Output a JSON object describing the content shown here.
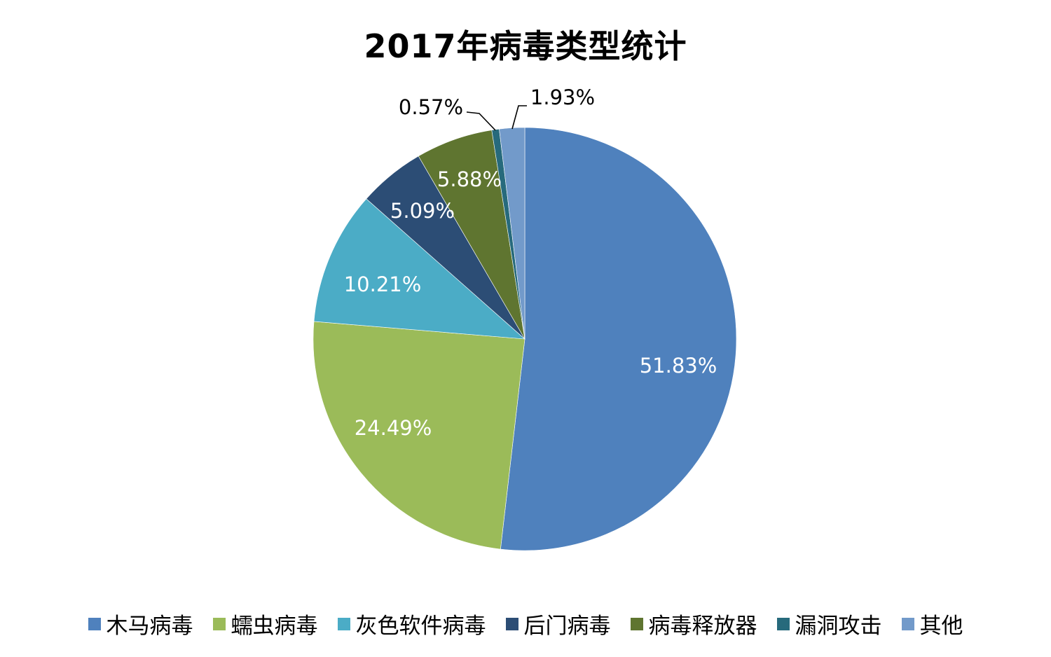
{
  "chart_data": {
    "type": "pie",
    "title": "2017年病毒类型统计",
    "categories": [
      "木马病毒",
      "蠕虫病毒",
      "灰色软件病毒",
      "后门病毒",
      "病毒释放器",
      "漏洞攻击",
      "其他"
    ],
    "values": [
      51.83,
      24.49,
      10.21,
      5.09,
      5.88,
      0.57,
      1.93
    ],
    "labels": [
      "51.83%",
      "24.49%",
      "10.21%",
      "5.09%",
      "5.88%",
      "0.57%",
      "1.93%"
    ],
    "colors": [
      "#4F81BD",
      "#9BBB59",
      "#4BACC6",
      "#2C4D75",
      "#5F7530",
      "#276A7C",
      "#729ACA"
    ],
    "start_angle_deg": 0,
    "direction": "clockwise",
    "legend_position": "bottom",
    "unit": "%"
  },
  "title": "2017年病毒类型统计",
  "legend": [
    {
      "label": "木马病毒",
      "color": "#4F81BD"
    },
    {
      "label": "蠕虫病毒",
      "color": "#9BBB59"
    },
    {
      "label": "灰色软件病毒",
      "color": "#4BACC6"
    },
    {
      "label": "后门病毒",
      "color": "#2C4D75"
    },
    {
      "label": "病毒释放器",
      "color": "#5F7530"
    },
    {
      "label": "漏洞攻击",
      "color": "#276A7C"
    },
    {
      "label": "其他",
      "color": "#729ACA"
    }
  ]
}
